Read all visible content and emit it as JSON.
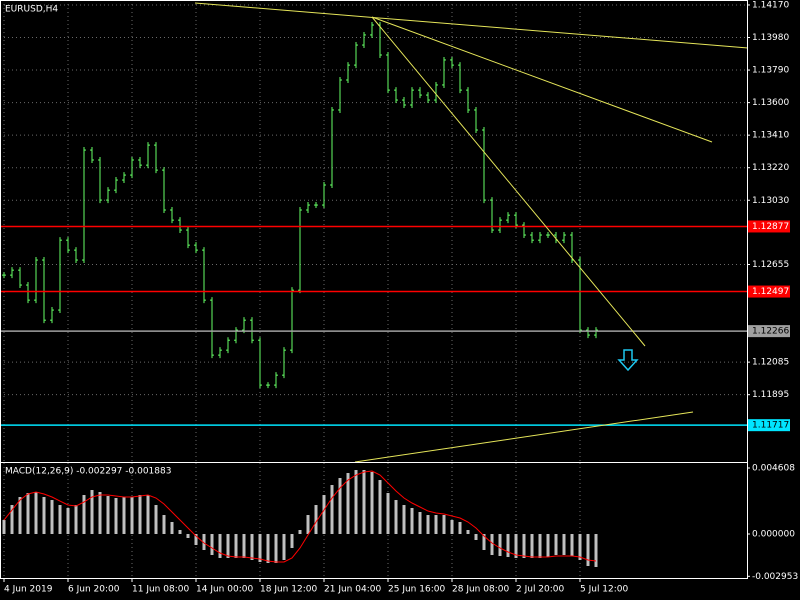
{
  "chart_data": {
    "type": "ohlc",
    "title": "EURUSD,H4",
    "bar_color": "#66ff66",
    "grid": true,
    "ylim": [
      1.11502,
      1.14199
    ],
    "yticks": [
      {
        "value": 1.1417,
        "label": "1.14170"
      },
      {
        "value": 1.1398,
        "label": "1.13980"
      },
      {
        "value": 1.1379,
        "label": "1.13790"
      },
      {
        "value": 1.136,
        "label": "1.13600"
      },
      {
        "value": 1.1341,
        "label": "1.13410"
      },
      {
        "value": 1.1322,
        "label": "1.13220"
      },
      {
        "value": 1.1303,
        "label": "1.13030"
      },
      1.12655,
      1.12085,
      1.11895
    ],
    "xticks": [
      {
        "value": 0,
        "label": "4 Jun 2019"
      },
      {
        "value": 8,
        "label": "6 Jun 20:00"
      },
      {
        "value": 16,
        "label": "11 Jun 08:00"
      },
      {
        "value": 24,
        "label": "14 Jun 00:00"
      },
      {
        "value": 32,
        "label": "18 Jun 12:00"
      },
      {
        "value": 40,
        "label": "21 Jun 04:00"
      },
      {
        "value": 48,
        "label": "25 Jun 16:00"
      },
      {
        "value": 56,
        "label": "28 Jun 08:00"
      },
      {
        "value": 64,
        "label": "2 Jul 20:00"
      },
      {
        "value": 72,
        "label": "5 Jul 12:00"
      }
    ],
    "levels": [
      {
        "value": 1.12877,
        "color": "#ff0000"
      },
      {
        "value": 1.12497,
        "color": "#ff0000"
      },
      {
        "value": 1.12266,
        "color": "#a0a0a0"
      },
      {
        "value": 1.11717,
        "color": "#00e5ff"
      }
    ],
    "close": [
      1.12593,
      1.12622,
      1.12535,
      1.12447,
      1.12681,
      1.1233,
      1.12389,
      1.12797,
      1.12739,
      1.12681,
      1.13323,
      1.13265,
      1.13031,
      1.13089,
      1.13148,
      1.13177,
      1.13265,
      1.13235,
      1.13352,
      1.13206,
      1.12973,
      1.12914,
      1.12856,
      1.12768,
      1.12739,
      1.12447,
      1.12126,
      1.12155,
      1.12213,
      1.12272,
      1.1233,
      1.12213,
      1.11951,
      1.11951,
      1.12009,
      1.12155,
      1.12505,
      1.12973,
      1.13002,
      1.13002,
      1.13119,
      1.13557,
      1.13732,
      1.13819,
      1.13936,
      1.13995,
      1.14053,
      1.13878,
      1.13673,
      1.13615,
      1.13586,
      1.13673,
      1.13644,
      1.13615,
      1.13703,
      1.13849,
      1.13819,
      1.13673,
      1.13557,
      1.1344,
      1.13031,
      1.12856,
      1.12914,
      1.12943,
      1.12885,
      1.12827,
      1.12797,
      1.12827,
      1.12827,
      1.12797,
      1.12827,
      1.12681,
      1.12272,
      1.12243,
      1.12272
    ],
    "macd": {
      "title": "MACD(12,26,9) -0.002297 -0.001883",
      "ylim": [
        -0.003072,
        0.004957
      ],
      "yticks": [
        0.004608,
        {
          "value": 0,
          "label": "0.000000"
        },
        -0.002953
      ],
      "histogram_color": "#c0c0c0",
      "signal_color": "#ff0000",
      "histogram": [
        0.000977,
        0.002024,
        0.002583,
        0.002862,
        0.002932,
        0.002583,
        0.002373,
        0.002024,
        0.001815,
        0.002024,
        0.002722,
        0.003071,
        0.002932,
        0.002652,
        0.002513,
        0.002583,
        0.002583,
        0.002722,
        0.002722,
        0.002024,
        0.001326,
        0.000838,
        0.000279,
        -0.000279,
        -0.000768,
        -0.001117,
        -0.001466,
        -0.001675,
        -0.001675,
        -0.001675,
        -0.001675,
        -0.001815,
        -0.001954,
        -0.002024,
        -0.002024,
        -0.001815,
        -0.000977,
        0.000279,
        0.001326,
        0.002024,
        0.002722,
        0.00342,
        0.003909,
        0.004258,
        0.004467,
        0.004467,
        0.004328,
        0.003769,
        0.002862,
        0.002373,
        0.002024,
        0.001815,
        0.001536,
        0.001326,
        0.001326,
        0.001326,
        0.000977,
        0.000838,
        0.000279,
        -0.000419,
        -0.001117,
        -0.001466,
        -0.001536,
        -0.001605,
        -0.001675,
        -0.001675,
        -0.001675,
        -0.001675,
        -0.001605,
        -0.001466,
        -0.001466,
        -0.001536,
        -0.001815,
        -0.002234,
        -0.002303
      ],
      "signal": [
        0.000977,
        0.001675,
        0.002373,
        0.002792,
        0.002932,
        0.002792,
        0.002583,
        0.002303,
        0.002024,
        0.001954,
        0.002234,
        0.002583,
        0.002722,
        0.002722,
        0.002652,
        0.002583,
        0.002583,
        0.002652,
        0.002722,
        0.002513,
        0.002094,
        0.001536,
        0.000977,
        0.000419,
        -0.00014,
        -0.000628,
        -0.000977,
        -0.001326,
        -0.001536,
        -0.001605,
        -0.001605,
        -0.001675,
        -0.001745,
        -0.001885,
        -0.001954,
        -0.001954,
        -0.001675,
        -0.000977,
        -7e-05,
        0.000838,
        0.001675,
        0.002513,
        0.003211,
        0.003769,
        0.004118,
        0.004328,
        0.004397,
        0.004118,
        0.00356,
        0.003001,
        0.002513,
        0.002164,
        0.001885,
        0.001605,
        0.001466,
        0.001396,
        0.001256,
        0.001117,
        0.000838,
        0.000419,
        -0.00014,
        -0.000628,
        -0.000977,
        -0.001256,
        -0.001466,
        -0.001536,
        -0.001605,
        -0.001605,
        -0.001605,
        -0.001536,
        -0.001536,
        -0.001536,
        -0.001605,
        -0.001815,
        -0.001885
      ]
    }
  }
}
